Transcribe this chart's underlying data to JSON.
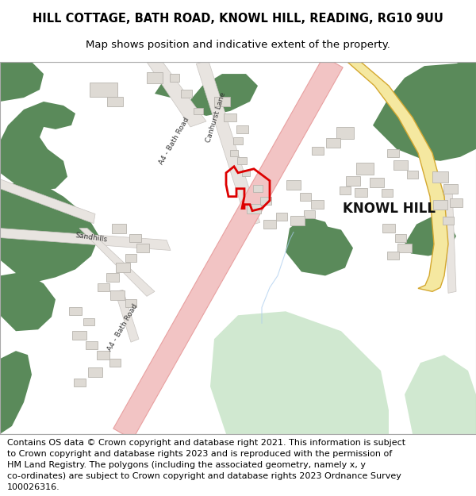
{
  "title_line1": "HILL COTTAGE, BATH ROAD, KNOWL HILL, READING, RG10 9UU",
  "title_line2": "Map shows position and indicative extent of the property.",
  "title_fontsize": 10.5,
  "subtitle_fontsize": 9.5,
  "footer_text": "Contains OS data © Crown copyright and database right 2021. This information is subject to Crown copyright and database rights 2023 and is reproduced with the permission of HM Land Registry. The polygons (including the associated geometry, namely x, y co-ordinates) are subject to Crown copyright and database rights 2023 Ordnance Survey 100026316.",
  "footer_fontsize": 8.0,
  "map_bg": "#ffffff",
  "green_dark": "#5a8a5a",
  "green_light": "#d0e8d0",
  "road_pink_fill": "#f2c4c4",
  "road_pink_edge": "#e8a0a0",
  "road_yellow_fill": "#f5e8a0",
  "road_yellow_edge": "#d4a830",
  "road_grey_fill": "#e8e4e0",
  "road_grey_edge": "#c8c4c0",
  "building_color": "#dedad4",
  "building_outline": "#b8b4ae",
  "red_polygon": "#dd0000",
  "water_color": "#c8dff0"
}
